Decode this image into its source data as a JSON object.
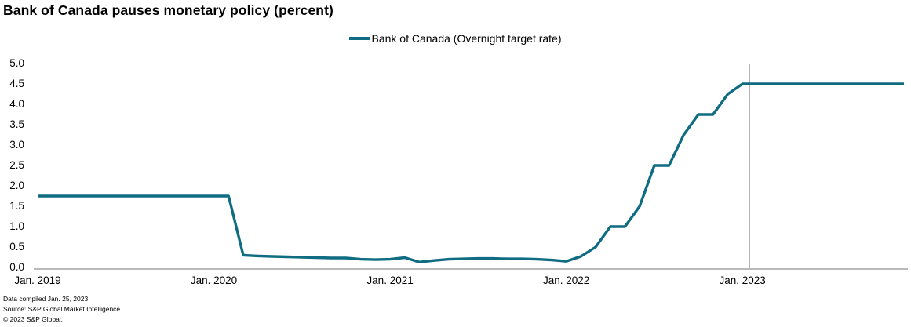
{
  "title": "Bank of Canada pauses monetary policy (percent)",
  "legend": {
    "label": "Bank of Canada (Overnight target rate)"
  },
  "footer": {
    "line1": "Data compiled Jan. 25, 2023.",
    "line2": "Source: S&P Global Market Intelligence.",
    "line3": "© 2023 S&P Global."
  },
  "colors": {
    "line": "#0f6c82",
    "axis": "#a3a3a3",
    "ref_line": "#b5b5b5",
    "text": "#000000"
  },
  "chart_data": {
    "type": "line",
    "title": "Bank of Canada pauses monetary policy (percent)",
    "ylabel": "percent",
    "ylim": [
      0.0,
      5.0
    ],
    "grid": false,
    "legend_position": "top-center",
    "y_ticks": [
      0.0,
      0.5,
      1.0,
      1.5,
      2.0,
      2.5,
      3.0,
      3.5,
      4.0,
      4.5,
      5.0
    ],
    "x_ticks": [
      {
        "label": "Jan. 2019",
        "index": 0
      },
      {
        "label": "Jan. 2020",
        "index": 12
      },
      {
        "label": "Jan. 2021",
        "index": 24
      },
      {
        "label": "Jan. 2022",
        "index": 36
      },
      {
        "label": "Jan. 2023",
        "index": 48
      }
    ],
    "reference_line": {
      "note": "vertical rule at data-compiled date Jan. 25, 2023",
      "x_index": 48.5
    },
    "series": [
      {
        "name": "Bank of Canada (Overnight target rate)",
        "x": [
          "Jan. 2019",
          "Feb. 2019",
          "Mar. 2019",
          "Apr. 2019",
          "May 2019",
          "Jun. 2019",
          "Jul. 2019",
          "Aug. 2019",
          "Sep. 2019",
          "Oct. 2019",
          "Nov. 2019",
          "Dec. 2019",
          "Jan. 2020",
          "Feb. 2020",
          "Mar. 2020",
          "Apr. 2020",
          "May 2020",
          "Jun. 2020",
          "Jul. 2020",
          "Aug. 2020",
          "Sep. 2020",
          "Oct. 2020",
          "Nov. 2020",
          "Dec. 2020",
          "Jan. 2021",
          "Feb. 2021",
          "Mar. 2021",
          "Apr. 2021",
          "May 2021",
          "Jun. 2021",
          "Jul. 2021",
          "Aug. 2021",
          "Sep. 2021",
          "Oct. 2021",
          "Nov. 2021",
          "Dec. 2021",
          "Jan. 2022",
          "Feb. 2022",
          "Mar. 2022",
          "Apr. 2022",
          "May 2022",
          "Jun. 2022",
          "Jul. 2022",
          "Aug. 2022",
          "Sep. 2022",
          "Oct. 2022",
          "Nov. 2022",
          "Dec. 2022",
          "Jan. 2023",
          "Feb. 2023",
          "Mar. 2023",
          "Apr. 2023",
          "May 2023",
          "Jun. 2023",
          "Jul. 2023",
          "Aug. 2023",
          "Sep. 2023",
          "Oct. 2023",
          "Nov. 2023",
          "Dec. 2023"
        ],
        "values": [
          1.75,
          1.75,
          1.75,
          1.75,
          1.75,
          1.75,
          1.75,
          1.75,
          1.75,
          1.75,
          1.75,
          1.75,
          1.75,
          1.75,
          0.3,
          0.28,
          0.27,
          0.26,
          0.25,
          0.24,
          0.23,
          0.23,
          0.2,
          0.19,
          0.2,
          0.24,
          0.13,
          0.17,
          0.2,
          0.21,
          0.22,
          0.22,
          0.21,
          0.21,
          0.2,
          0.18,
          0.15,
          0.27,
          0.5,
          1.0,
          1.0,
          1.5,
          2.5,
          2.5,
          3.25,
          3.75,
          3.75,
          4.25,
          4.5,
          4.5,
          4.5,
          4.5,
          4.5,
          4.5,
          4.5,
          4.5,
          4.5,
          4.5,
          4.5,
          4.5
        ]
      }
    ]
  }
}
